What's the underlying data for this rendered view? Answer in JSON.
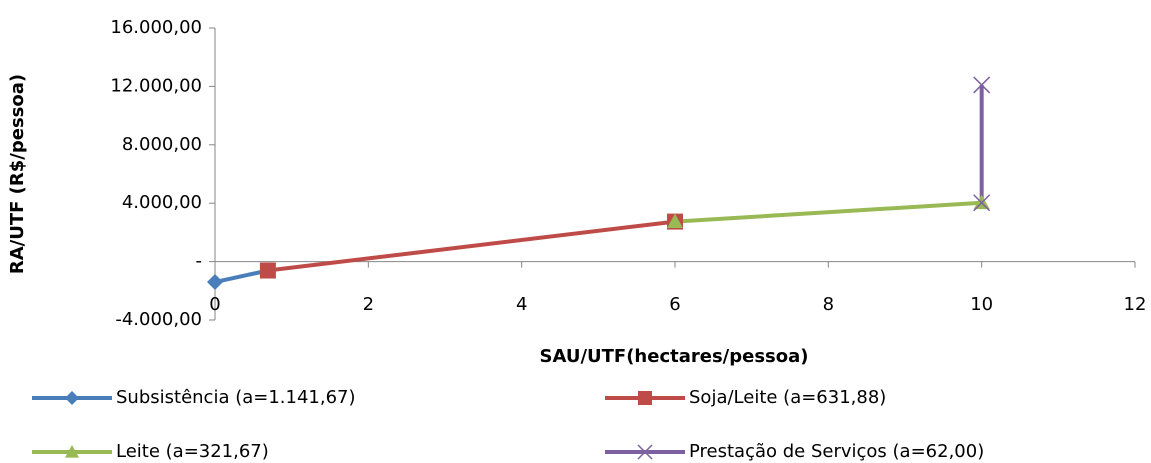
{
  "chart_data": {
    "type": "line",
    "xlabel": "SAU/UTF(hectares/pessoa)",
    "ylabel": "RA/UTF (R$/pessoa)",
    "xlim": [
      0,
      12
    ],
    "xticks": [
      0,
      2,
      4,
      6,
      8,
      10,
      12
    ],
    "ylim": [
      -4000,
      16000
    ],
    "yticks": [
      {
        "value": -4000,
        "label": "-4.000,00"
      },
      {
        "value": 0,
        "label": "-"
      },
      {
        "value": 4000,
        "label": "4.000,00"
      },
      {
        "value": 8000,
        "label": "8.000,00"
      },
      {
        "value": 12000,
        "label": "12.000,00"
      },
      {
        "value": 16000,
        "label": "16.000,00"
      }
    ],
    "grid": false,
    "legend": "bottom",
    "series": [
      {
        "name": "Subsistência (a=1.141,67)",
        "color": "#4a7ebb",
        "marker": "diamond",
        "x": [
          0,
          0.69
        ],
        "values": [
          -1400,
          -610
        ]
      },
      {
        "name": "Soja/Leite (a=631,88)",
        "color": "#be4b48",
        "marker": "square",
        "x": [
          0.69,
          6
        ],
        "values": [
          -610,
          2740
        ]
      },
      {
        "name": "Leite (a=321,67)",
        "color": "#98b954",
        "marker": "triangle",
        "x": [
          6,
          10
        ],
        "values": [
          2740,
          4030
        ]
      },
      {
        "name": "Prestação de Serviços (a=62,00)",
        "color": "#7d60a0",
        "marker": "x",
        "x": [
          10,
          10
        ],
        "values": [
          4030,
          12100
        ]
      }
    ]
  }
}
